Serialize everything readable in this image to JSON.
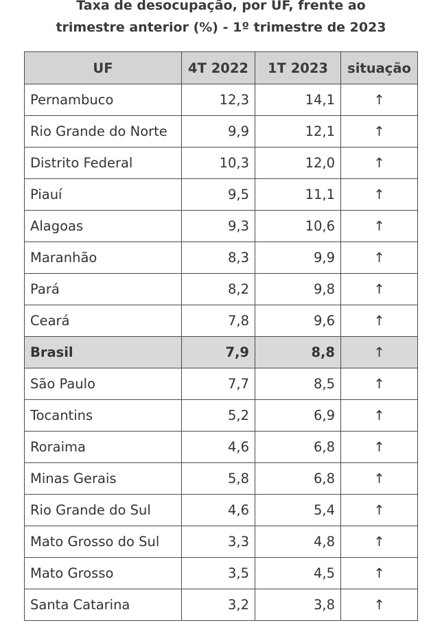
{
  "title": {
    "line1": "Taxa de desocupação, por UF, frente ao",
    "line2": "trimestre anterior (%) - 1º trimestre de 2023"
  },
  "table": {
    "headers": [
      "UF",
      "4T 2022",
      "1T 2023",
      "situação"
    ],
    "rows": [
      {
        "uf": "Pernambuco",
        "t4_2022": "12,3",
        "t1_2023": "14,1",
        "situacao": "↑"
      },
      {
        "uf": "Rio Grande do Norte",
        "t4_2022": "9,9",
        "t1_2023": "12,1",
        "situacao": "↑"
      },
      {
        "uf": "Distrito Federal",
        "t4_2022": "10,3",
        "t1_2023": "12,0",
        "situacao": "↑"
      },
      {
        "uf": "Piauí",
        "t4_2022": "9,5",
        "t1_2023": "11,1",
        "situacao": "↑"
      },
      {
        "uf": "Alagoas",
        "t4_2022": "9,3",
        "t1_2023": "10,6",
        "situacao": "↑"
      },
      {
        "uf": "Maranhão",
        "t4_2022": "8,3",
        "t1_2023": "9,9",
        "situacao": "↑"
      },
      {
        "uf": "Pará",
        "t4_2022": "8,2",
        "t1_2023": "9,8",
        "situacao": "↑"
      },
      {
        "uf": "Ceará",
        "t4_2022": "7,8",
        "t1_2023": "9,6",
        "situacao": "↑"
      },
      {
        "uf": "Brasil",
        "t4_2022": "7,9",
        "t1_2023": "8,8",
        "situacao": "↑",
        "highlight": true
      },
      {
        "uf": "São Paulo",
        "t4_2022": "7,7",
        "t1_2023": "8,5",
        "situacao": "↑"
      },
      {
        "uf": "Tocantins",
        "t4_2022": "5,2",
        "t1_2023": "6,9",
        "situacao": "↑"
      },
      {
        "uf": "Roraima",
        "t4_2022": "4,6",
        "t1_2023": "6,8",
        "situacao": "↑"
      },
      {
        "uf": "Minas Gerais",
        "t4_2022": "5,8",
        "t1_2023": "6,8",
        "situacao": "↑"
      },
      {
        "uf": "Rio Grande do Sul",
        "t4_2022": "4,6",
        "t1_2023": "5,4",
        "situacao": "↑"
      },
      {
        "uf": "Mato Grosso do Sul",
        "t4_2022": "3,3",
        "t1_2023": "4,8",
        "situacao": "↑"
      },
      {
        "uf": "Mato Grosso",
        "t4_2022": "3,5",
        "t1_2023": "4,5",
        "situacao": "↑"
      },
      {
        "uf": "Santa Catarina",
        "t4_2022": "3,2",
        "t1_2023": "3,8",
        "situacao": "↑"
      }
    ]
  },
  "colors": {
    "header_bg": "#d4d4d4",
    "highlight_bg": "#d9d9d9",
    "border": "#4a4a4a",
    "text": "#333333"
  }
}
